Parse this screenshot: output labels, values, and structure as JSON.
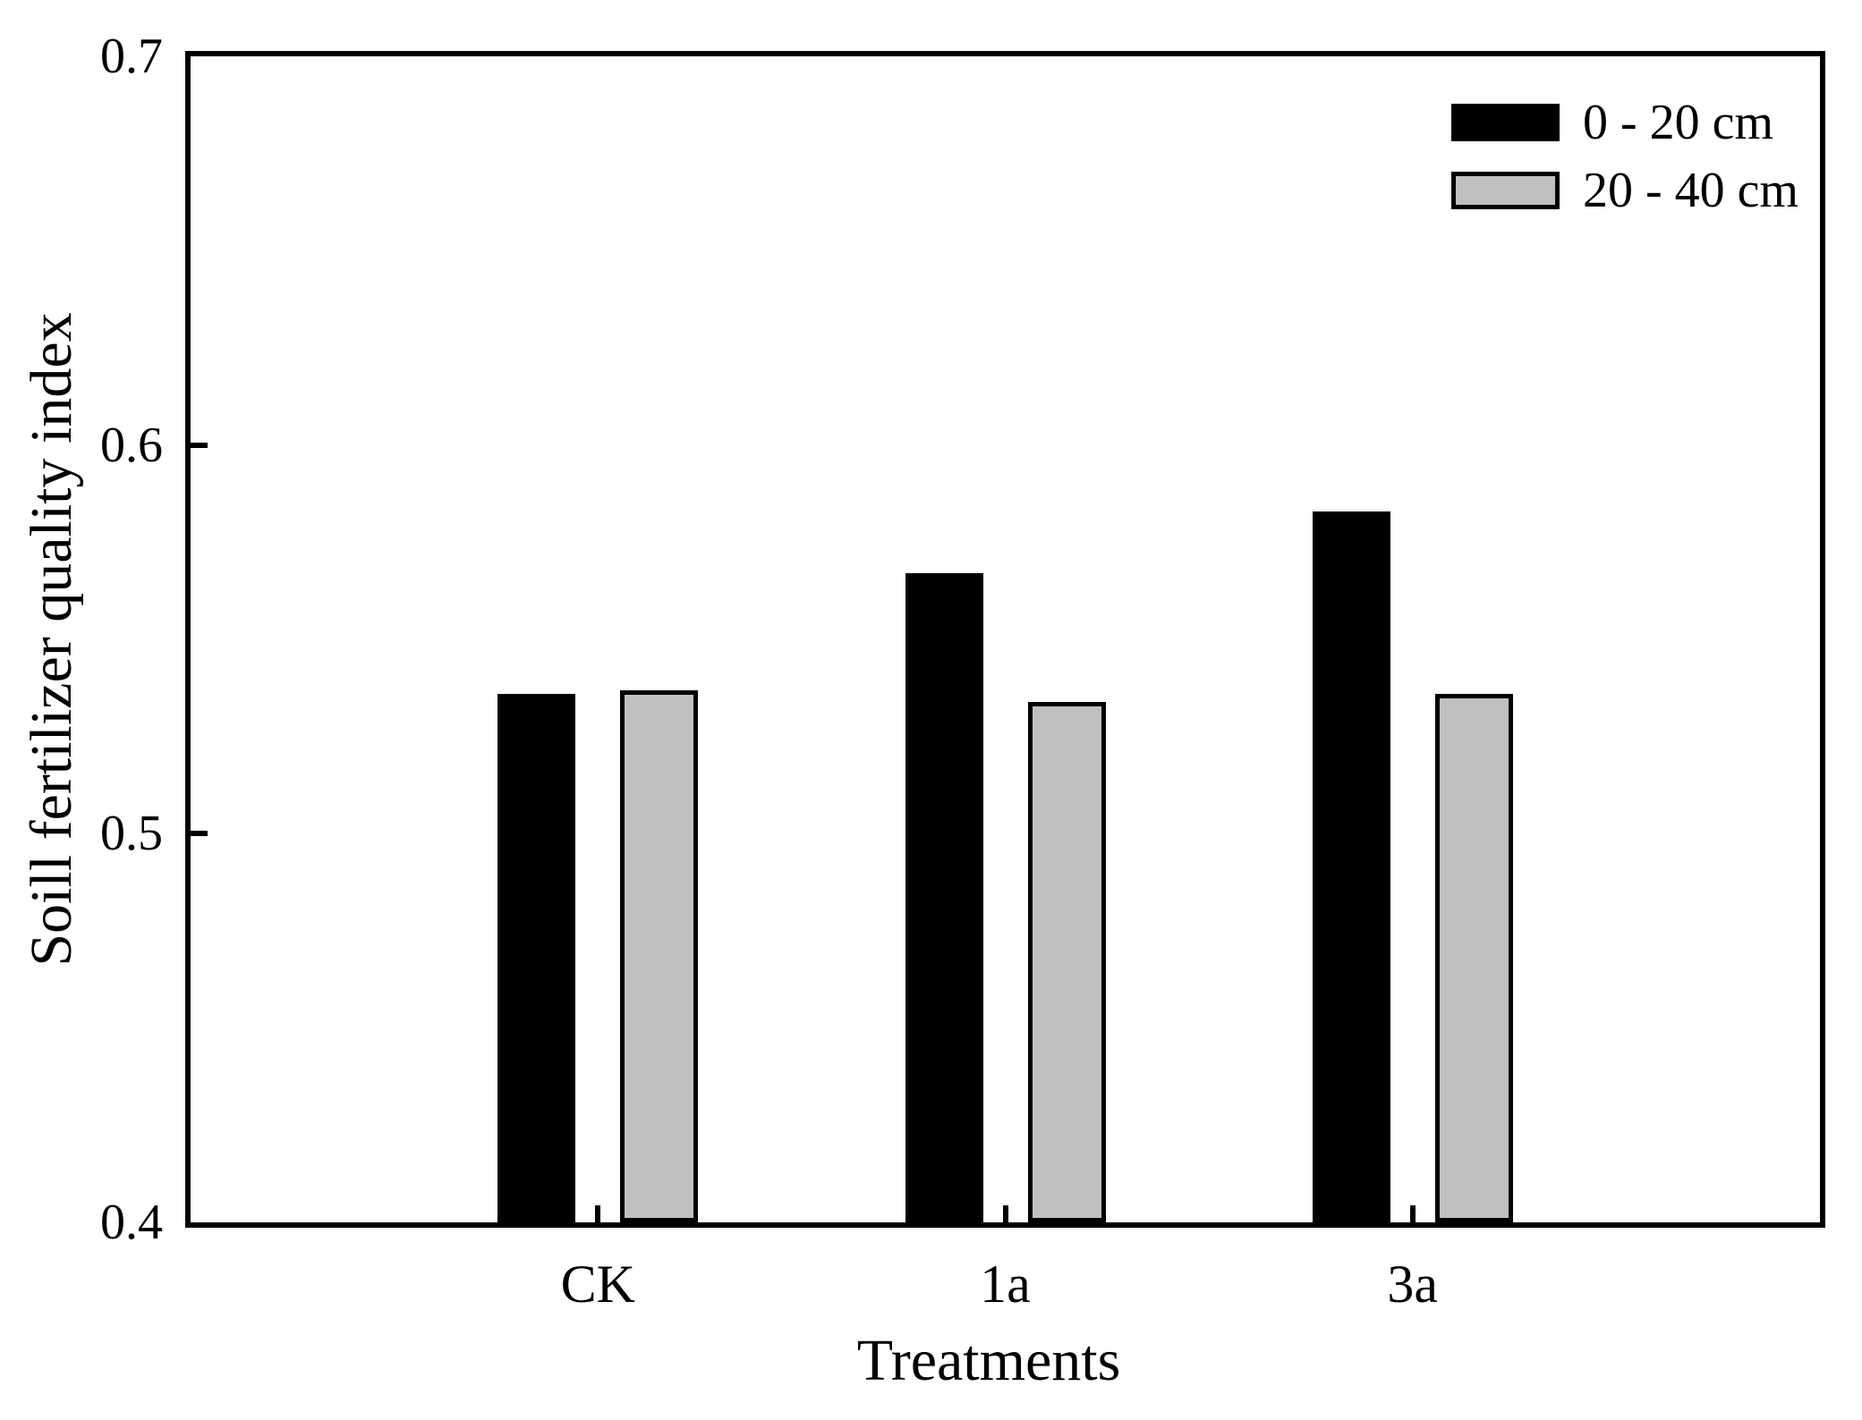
{
  "figure": {
    "background": "#ffffff",
    "axis_color": "#000000"
  },
  "chart_data": {
    "type": "bar",
    "title": "",
    "xlabel": "Treatments",
    "ylabel": "Soill fertilizer quality index",
    "categories": [
      "CK",
      "1a",
      "3a"
    ],
    "series": [
      {
        "name": "0 - 20 cm",
        "color": "#000000",
        "border_color": "#000000",
        "values": [
          0.536,
          0.567,
          0.583
        ]
      },
      {
        "name": "20 - 40 cm",
        "color": "#c0c0c0",
        "border_color": "#000000",
        "values": [
          0.537,
          0.534,
          0.536
        ]
      }
    ],
    "ylim": [
      0.4,
      0.7
    ],
    "yticks": [
      {
        "value": 0.4,
        "label": "0.4"
      },
      {
        "value": 0.5,
        "label": "0.5"
      },
      {
        "value": 0.6,
        "label": "0.6"
      },
      {
        "value": 0.7,
        "label": "0.7"
      }
    ],
    "grid": false,
    "legend_position": "top-right"
  }
}
